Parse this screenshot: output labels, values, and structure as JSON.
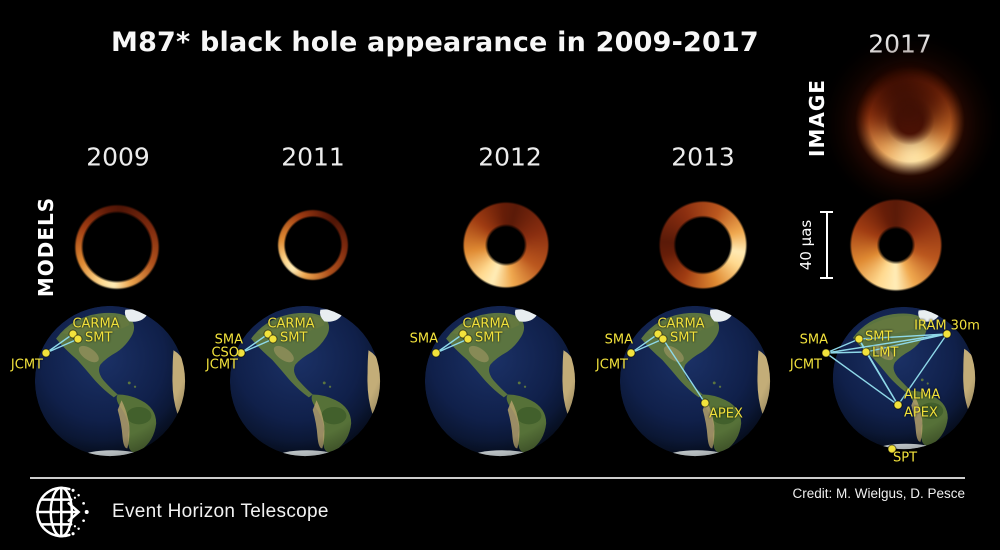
{
  "title": "M87* black hole appearance in 2009-2017",
  "row_labels": {
    "models": "MODELS",
    "image": "IMAGE"
  },
  "years": [
    "2009",
    "2011",
    "2012",
    "2013",
    "2017"
  ],
  "scale_bar": {
    "label": "40 μas"
  },
  "footer": {
    "org": "Event Horizon Telescope",
    "credit": "Credit: M. Wielgus, D. Pesce"
  },
  "colors": {
    "background": "#000000",
    "station_yellow": "#f2e23c",
    "baseline_cyan": "#8ed8e8",
    "ring_bright": "#ffedb8",
    "ring_dark": "#4f1506",
    "ocean_blue": "#10204a",
    "land_green": "#5b7440"
  },
  "globes": [
    {
      "year": "2009",
      "stations": [
        {
          "name": "CARMA",
          "dot": [
            73,
            334
          ],
          "label": [
            96,
            324
          ],
          "anchor": "middle"
        },
        {
          "name": "SMT",
          "dot": [
            78,
            339
          ],
          "label": [
            85,
            338
          ],
          "anchor": "start"
        },
        {
          "name": "JCMT",
          "dot": [
            46,
            353
          ],
          "label": [
            43,
            365
          ],
          "anchor": "end"
        }
      ],
      "baselines": [
        [
          [
            46,
            353
          ],
          [
            73,
            334
          ]
        ],
        [
          [
            46,
            353
          ],
          [
            78,
            339
          ]
        ]
      ]
    },
    {
      "year": "2011",
      "stations": [
        {
          "name": "CARMA",
          "dot": [
            268,
            334
          ],
          "label": [
            291,
            324
          ],
          "anchor": "middle"
        },
        {
          "name": "SMT",
          "dot": [
            273,
            339
          ],
          "label": [
            280,
            338
          ],
          "anchor": "start"
        },
        {
          "name": "SMA",
          "dot": [
            241,
            353
          ],
          "label": [
            243,
            340
          ],
          "anchor": "end"
        },
        {
          "name": "CSO",
          "dot": [
            241,
            353
          ],
          "label": [
            239,
            353
          ],
          "anchor": "end"
        },
        {
          "name": "JCMT",
          "dot": [
            241,
            353
          ],
          "label": [
            238,
            365
          ],
          "anchor": "end"
        }
      ],
      "baselines": [
        [
          [
            241,
            353
          ],
          [
            268,
            334
          ]
        ],
        [
          [
            241,
            353
          ],
          [
            273,
            339
          ]
        ]
      ]
    },
    {
      "year": "2012",
      "stations": [
        {
          "name": "CARMA",
          "dot": [
            463,
            334
          ],
          "label": [
            486,
            324
          ],
          "anchor": "middle"
        },
        {
          "name": "SMT",
          "dot": [
            468,
            339
          ],
          "label": [
            475,
            338
          ],
          "anchor": "start"
        },
        {
          "name": "SMA",
          "dot": [
            436,
            353
          ],
          "label": [
            438,
            339
          ],
          "anchor": "end"
        }
      ],
      "baselines": [
        [
          [
            436,
            353
          ],
          [
            463,
            334
          ]
        ],
        [
          [
            436,
            353
          ],
          [
            468,
            339
          ]
        ]
      ]
    },
    {
      "year": "2013",
      "stations": [
        {
          "name": "CARMA",
          "dot": [
            658,
            334
          ],
          "label": [
            681,
            324
          ],
          "anchor": "middle"
        },
        {
          "name": "SMT",
          "dot": [
            663,
            339
          ],
          "label": [
            670,
            338
          ],
          "anchor": "start"
        },
        {
          "name": "SMA",
          "dot": [
            631,
            353
          ],
          "label": [
            633,
            340
          ],
          "anchor": "end"
        },
        {
          "name": "JCMT",
          "dot": [
            631,
            353
          ],
          "label": [
            628,
            365
          ],
          "anchor": "end"
        },
        {
          "name": "APEX",
          "dot": [
            705,
            403
          ],
          "label": [
            709,
            414
          ],
          "anchor": "start"
        }
      ],
      "baselines": [
        [
          [
            631,
            353
          ],
          [
            658,
            334
          ]
        ],
        [
          [
            631,
            353
          ],
          [
            663,
            339
          ]
        ],
        [
          [
            663,
            339
          ],
          [
            705,
            403
          ]
        ]
      ]
    },
    {
      "year": "2017",
      "stations": [
        {
          "name": "SMA",
          "dot": [
            826,
            353
          ],
          "label": [
            828,
            340
          ],
          "anchor": "end"
        },
        {
          "name": "JCMT",
          "dot": [
            826,
            353
          ],
          "label": [
            822,
            365
          ],
          "anchor": "end"
        },
        {
          "name": "SMT",
          "dot": [
            859,
            339
          ],
          "label": [
            865,
            337
          ],
          "anchor": "start"
        },
        {
          "name": "LMT",
          "dot": [
            866,
            352
          ],
          "label": [
            872,
            353
          ],
          "anchor": "start"
        },
        {
          "name": "IRAM 30m",
          "dot": [
            947,
            334
          ],
          "label": [
            947,
            326
          ],
          "anchor": "middle"
        },
        {
          "name": "ALMA",
          "dot": [
            898,
            405
          ],
          "label": [
            904,
            395
          ],
          "anchor": "start"
        },
        {
          "name": "APEX",
          "dot": [
            898,
            405
          ],
          "label": [
            904,
            413
          ],
          "anchor": "start"
        },
        {
          "name": "SPT",
          "dot": [
            892,
            449
          ],
          "label": [
            905,
            458
          ],
          "anchor": "middle"
        }
      ],
      "baselines": [
        [
          [
            826,
            353
          ],
          [
            859,
            339
          ]
        ],
        [
          [
            826,
            353
          ],
          [
            866,
            352
          ]
        ],
        [
          [
            826,
            353
          ],
          [
            947,
            334
          ]
        ],
        [
          [
            826,
            353
          ],
          [
            898,
            405
          ]
        ],
        [
          [
            859,
            339
          ],
          [
            866,
            352
          ]
        ],
        [
          [
            859,
            339
          ],
          [
            947,
            334
          ]
        ],
        [
          [
            859,
            339
          ],
          [
            898,
            405
          ]
        ],
        [
          [
            866,
            352
          ],
          [
            947,
            334
          ]
        ],
        [
          [
            866,
            352
          ],
          [
            898,
            405
          ]
        ],
        [
          [
            947,
            334
          ],
          [
            898,
            405
          ]
        ]
      ]
    }
  ]
}
